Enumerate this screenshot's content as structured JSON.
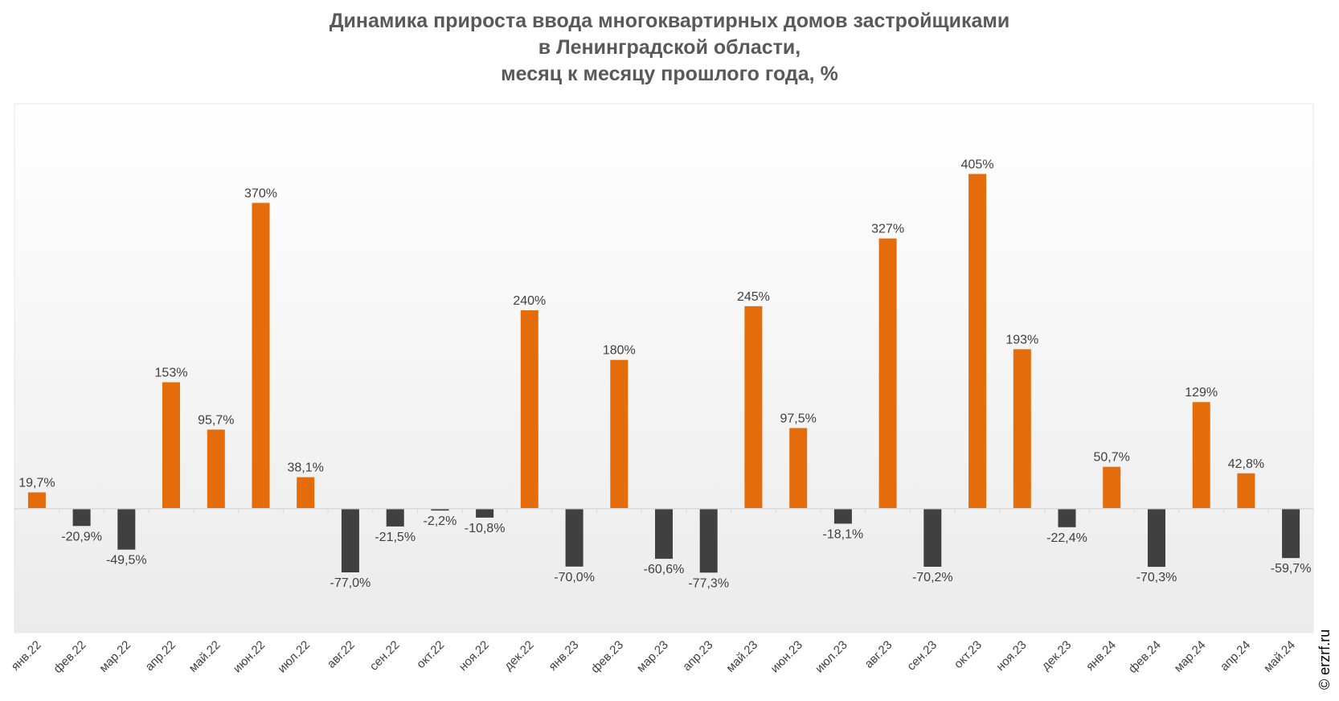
{
  "title_lines": [
    "Динамика прироста ввода многоквартирных домов застройщиками",
    "в Ленинградской области,",
    "месяц к месяцу прошлого года, %"
  ],
  "watermark": "© erzrf.ru",
  "colors": {
    "positive": "#E46C0A",
    "negative": "#404040",
    "text": "#404040",
    "title": "#595959"
  },
  "chart_data": {
    "type": "bar",
    "title": "Динамика прироста ввода многоквартирных домов застройщиками в Ленинградской области, месяц к месяцу прошлого года, %",
    "categories": [
      "янв.22",
      "фев.22",
      "мар.22",
      "апр.22",
      "май.22",
      "июн.22",
      "июл.22",
      "авг.22",
      "сен.22",
      "окт.22",
      "ноя.22",
      "дек.22",
      "янв.23",
      "фев.23",
      "мар.23",
      "апр.23",
      "май.23",
      "июн.23",
      "июл.23",
      "авг.23",
      "сен.23",
      "окт.23",
      "ноя.23",
      "дек.23",
      "янв.24",
      "фев.24",
      "мар.24",
      "апр.24",
      "май.24"
    ],
    "values": [
      19.7,
      -20.9,
      -49.5,
      153,
      95.7,
      370,
      38.1,
      -77.0,
      -21.5,
      -2.2,
      -10.8,
      240,
      -70.0,
      180,
      -60.6,
      -77.3,
      245,
      97.5,
      -18.1,
      327,
      -70.2,
      405,
      193,
      -22.4,
      50.7,
      -70.3,
      129,
      42.8,
      -59.7
    ],
    "labels": [
      "19,7%",
      "-20,9%",
      "-49,5%",
      "153%",
      "95,7%",
      "370%",
      "38,1%",
      "-77,0%",
      "-21,5%",
      "-2,2%",
      "-10,8%",
      "240%",
      "-70,0%",
      "180%",
      "-60,6%",
      "-77,3%",
      "245%",
      "97,5%",
      "-18,1%",
      "327%",
      "-70,2%",
      "405%",
      "193%",
      "-22,4%",
      "50,7%",
      "-70,3%",
      "129%",
      "42,8%",
      "-59,7%"
    ],
    "ylim": [
      -150,
      490
    ],
    "grid": false,
    "legend": "none",
    "xlabel": "",
    "ylabel": ""
  }
}
